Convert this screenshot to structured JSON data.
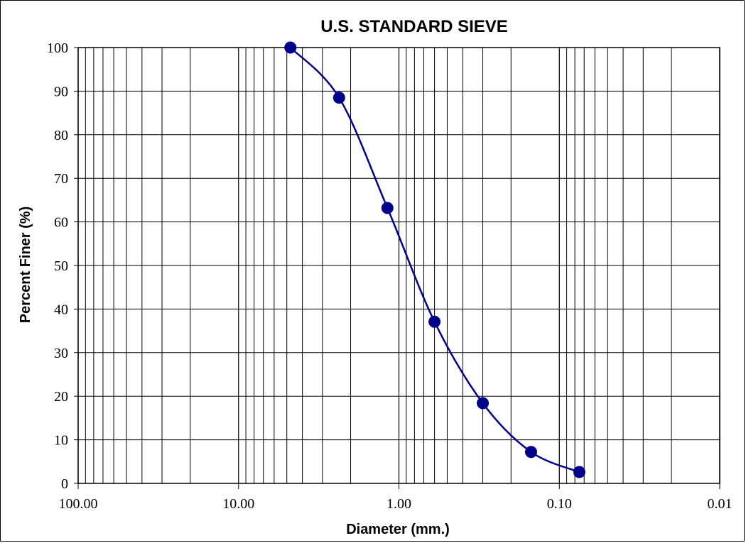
{
  "chart_data": {
    "type": "scatter",
    "title": "U.S. STANDARD SIEVE",
    "xlabel": "Diameter (mm.)",
    "ylabel": "Percent Finer (%)",
    "x_scale": "log",
    "x_reversed": true,
    "xlim": [
      100,
      0.01
    ],
    "ylim": [
      0,
      100
    ],
    "x_tick_values": [
      100,
      10,
      1,
      0.1,
      0.01
    ],
    "x_tick_labels": [
      "100.00",
      "10.00",
      "1.00",
      "0.10",
      "0.01"
    ],
    "y_ticks": [
      0,
      10,
      20,
      30,
      40,
      50,
      60,
      70,
      80,
      90,
      100
    ],
    "grid": true,
    "series_color": "#00008B",
    "series": [
      {
        "x": [
          4.75,
          2.36,
          1.18,
          0.6,
          0.3,
          0.15,
          0.075
        ],
        "y": [
          100,
          88.5,
          63.2,
          37.1,
          18.4,
          7.2,
          2.6
        ]
      }
    ]
  }
}
